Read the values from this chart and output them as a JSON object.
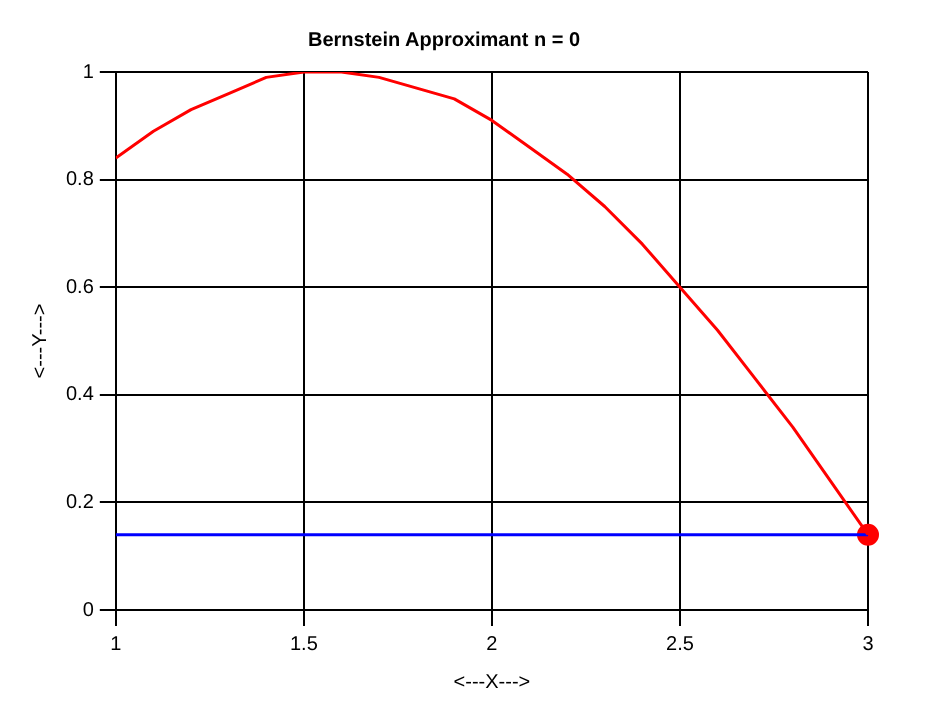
{
  "chart_data": {
    "type": "line",
    "title": "Bernstein Approximant n = 0",
    "xlabel": "<---X--->",
    "ylabel": "<---Y--->",
    "series": [
      {
        "type": "line",
        "color": "#ff0000",
        "marker": "none",
        "x": [
          1,
          1.1,
          1.2,
          1.3,
          1.4,
          1.5,
          1.6,
          1.7,
          1.8,
          1.9,
          2,
          2.1,
          2.2,
          2.3,
          2.4,
          2.5,
          2.6,
          2.7,
          2.8,
          2.9,
          3
        ],
        "values": [
          0.84,
          0.89,
          0.93,
          0.96,
          0.99,
          1.0,
          1.0,
          0.99,
          0.97,
          0.95,
          0.91,
          0.86,
          0.81,
          0.75,
          0.68,
          0.6,
          0.52,
          0.43,
          0.34,
          0.24,
          0.14
        ]
      },
      {
        "type": "line",
        "color": "#0000ff",
        "marker": "none",
        "x": [
          1,
          3
        ],
        "values": [
          0.14,
          0.14
        ]
      },
      {
        "type": "scatter",
        "color": "#ff0000",
        "marker": "circle",
        "x": [
          3
        ],
        "values": [
          0.14
        ]
      }
    ],
    "xlim": [
      1,
      3
    ],
    "xticks": [
      1,
      1.5,
      2,
      2.5,
      3
    ],
    "ylim": [
      0,
      1
    ],
    "yticks": [
      0,
      0.2,
      0.4,
      0.6,
      0.8,
      1
    ],
    "grid": true,
    "legend": false
  }
}
